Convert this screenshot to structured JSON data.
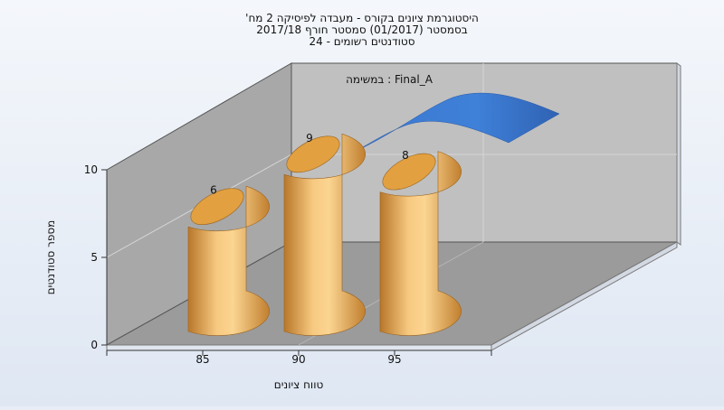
{
  "chart_data": {
    "type": "bar",
    "title_lines": [
      "היסטוגרמת ציונים בקורס - מעבדה לפיסיקה 2 מח'",
      "בסמסטר  (01/2017)  סמסטר חורף 2017/18",
      "סטודנטים רשומים - 24"
    ],
    "xlabel": "טווח ציונים",
    "ylabel": "מספר סטודנטים",
    "x_ticks": [
      "85",
      "90",
      "95"
    ],
    "y_ticks": [
      "0",
      "5",
      "10"
    ],
    "ylim": [
      0,
      10
    ],
    "categories": [
      "85",
      "90",
      "95"
    ],
    "values": [
      6,
      9,
      8
    ],
    "series_label": "במשימה : Final_A",
    "colors": {
      "bar": "#e8a544",
      "curve": "#3a78cf",
      "back_wall": "#c0c0c0",
      "side_wall": "#a7a7a7",
      "floor": "#9a9a9a"
    }
  }
}
